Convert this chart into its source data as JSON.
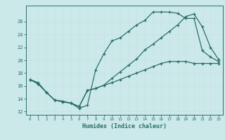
{
  "xlabel": "Humidex (Indice chaleur)",
  "bg_color": "#cce9ea",
  "grid_color": "#b0d8da",
  "line_color": "#2a6e6a",
  "xlim": [
    -0.5,
    23.5
  ],
  "ylim": [
    11.5,
    28.5
  ],
  "xticks": [
    0,
    1,
    2,
    3,
    4,
    5,
    6,
    7,
    8,
    9,
    10,
    11,
    12,
    13,
    14,
    15,
    16,
    17,
    18,
    19,
    20,
    21,
    22,
    23
  ],
  "yticks": [
    12,
    14,
    16,
    18,
    20,
    22,
    24,
    26
  ],
  "line1_x": [
    0,
    1,
    2,
    3,
    4,
    5,
    6,
    7,
    8,
    9,
    10,
    11,
    12,
    13,
    14,
    15,
    16,
    17,
    18,
    19,
    20,
    21,
    22,
    23
  ],
  "line1_y": [
    17.0,
    16.5,
    15.0,
    13.8,
    13.5,
    13.3,
    12.5,
    13.0,
    18.5,
    21.0,
    23.0,
    23.5,
    24.5,
    25.5,
    26.2,
    27.5,
    27.5,
    27.5,
    27.3,
    26.5,
    26.5,
    21.5,
    20.5,
    19.8
  ],
  "line2_x": [
    0,
    1,
    2,
    3,
    4,
    5,
    6,
    7,
    8,
    9,
    10,
    11,
    12,
    13,
    14,
    15,
    16,
    17,
    18,
    19,
    20,
    21,
    22,
    23
  ],
  "line2_y": [
    17.0,
    16.3,
    15.0,
    13.8,
    13.6,
    13.3,
    12.8,
    15.3,
    15.6,
    16.1,
    17.2,
    18.2,
    19.2,
    20.2,
    21.6,
    22.5,
    23.5,
    24.5,
    25.5,
    26.8,
    27.2,
    25.2,
    22.0,
    20.1
  ],
  "line3_x": [
    0,
    1,
    2,
    3,
    4,
    5,
    6,
    7,
    8,
    9,
    10,
    11,
    12,
    13,
    14,
    15,
    16,
    17,
    18,
    19,
    20,
    21,
    22,
    23
  ],
  "line3_y": [
    17.0,
    16.3,
    15.0,
    13.8,
    13.6,
    13.3,
    12.8,
    15.3,
    15.6,
    16.1,
    16.5,
    17.0,
    17.5,
    18.0,
    18.5,
    19.0,
    19.5,
    19.8,
    19.8,
    19.8,
    19.5,
    19.5,
    19.5,
    19.5
  ]
}
